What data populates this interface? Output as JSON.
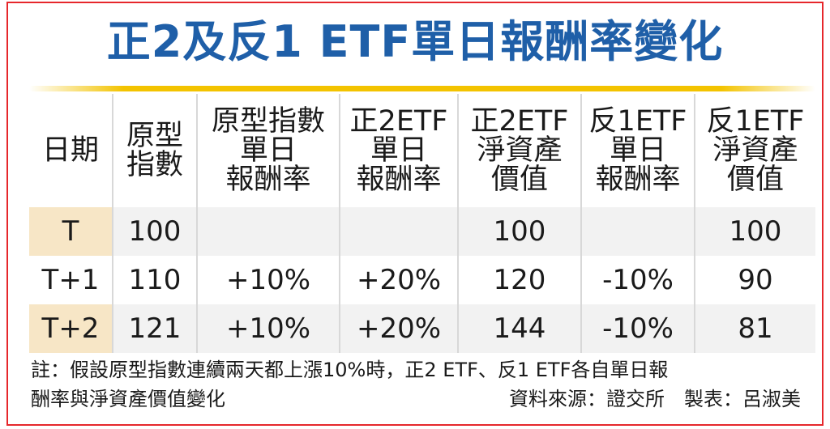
{
  "title": "正2及反1 ETF單日報酬率變化",
  "table": {
    "headers": [
      "日期",
      "原型\n指數",
      "原型指數\n單日\n報酬率",
      "正2ETF\n單日\n報酬率",
      "正2ETF\n淨資產\n價值",
      "反1ETF\n單日\n報酬率",
      "反1ETF\n淨資產\n價值"
    ],
    "rows": [
      [
        "T",
        "100",
        "",
        "",
        "100",
        "",
        "100"
      ],
      [
        "T+1",
        "110",
        "+10%",
        "+20%",
        "120",
        "-10%",
        "90"
      ],
      [
        "T+2",
        "121",
        "+10%",
        "+20%",
        "144",
        "-10%",
        "81"
      ]
    ]
  },
  "note_line1": "註：假設原型指數連續兩天都上漲10%時，正2 ETF、反1 ETF各自單日報",
  "note_line2": "酬率與淨資產價值變化",
  "source": "資料來源：證交所　製表：呂淑美",
  "colors": {
    "border": "#e6272b",
    "title": "#1f5fa8",
    "rule": "#f3c300",
    "date_cell": "#f7e6c6",
    "stripe": "#f2f2f2"
  }
}
